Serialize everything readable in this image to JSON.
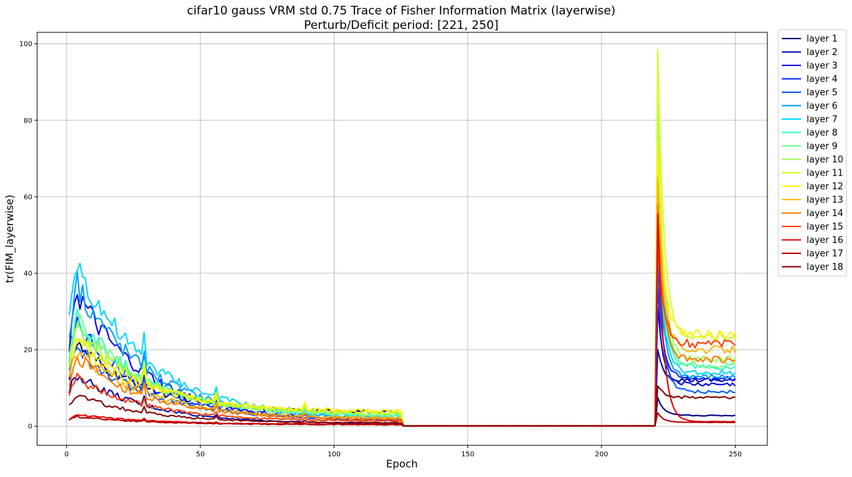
{
  "chart_data": {
    "type": "line",
    "title_line1": "cifar10 gauss VRM std 0.75 Trace of Fisher Information Matrix (layerwise)",
    "title_line2": "Perturb/Deficit period: [221, 250]",
    "xlabel": "Epoch",
    "ylabel": "tr(FIM_layerwise)",
    "xlim": [
      -11,
      262
    ],
    "ylim": [
      -5,
      103
    ],
    "x_ticks": [
      0,
      50,
      100,
      150,
      200,
      250
    ],
    "y_ticks": [
      0,
      20,
      40,
      60,
      80,
      100
    ],
    "grid": true,
    "legend_position": "outside-right-top",
    "series": [
      {
        "name": "layer 1",
        "color": "#00007f",
        "peak_early": 21,
        "plateau": 3.5,
        "spike": 7.5,
        "final": 2.8
      },
      {
        "name": "layer 2",
        "color": "#0000b2",
        "peak_early": 13.5,
        "plateau": 0.6,
        "spike": 20,
        "final": 12
      },
      {
        "name": "layer 3",
        "color": "#0000e5",
        "peak_early": 34.5,
        "plateau": 1.2,
        "spike": 31,
        "final": 11
      },
      {
        "name": "layer 4",
        "color": "#0024ff",
        "peak_early": 26,
        "plateau": 1.4,
        "spike": 36,
        "final": 12.5
      },
      {
        "name": "layer 5",
        "color": "#0060ff",
        "peak_early": 21,
        "plateau": 1.6,
        "spike": 42,
        "final": 9
      },
      {
        "name": "layer 6",
        "color": "#009cff",
        "peak_early": 37.5,
        "plateau": 1.8,
        "spike": 49,
        "final": 13
      },
      {
        "name": "layer 7",
        "color": "#00d8ff",
        "peak_early": 42.5,
        "plateau": 2.2,
        "spike": 56,
        "final": 14
      },
      {
        "name": "layer 8",
        "color": "#33ffc3",
        "peak_early": 29,
        "plateau": 2.4,
        "spike": 63,
        "final": 15.5
      },
      {
        "name": "layer 9",
        "color": "#69ff8d",
        "peak_early": 27.5,
        "plateau": 2.6,
        "spike": 71,
        "final": 16
      },
      {
        "name": "layer 10",
        "color": "#9fff56",
        "peak_early": 26,
        "plateau": 2.9,
        "spike": 85,
        "final": 17.5
      },
      {
        "name": "layer 11",
        "color": "#d5ff20",
        "peak_early": 24.5,
        "plateau": 3.3,
        "spike": 98.5,
        "final": 23.5
      },
      {
        "name": "layer 12",
        "color": "#fff000",
        "peak_early": 22,
        "plateau": 3.8,
        "spike": 74,
        "final": 24
      },
      {
        "name": "layer 13",
        "color": "#ffb500",
        "peak_early": 20,
        "plateau": 2.0,
        "spike": 65,
        "final": 20
      },
      {
        "name": "layer 14",
        "color": "#ff7a00",
        "peak_early": 18,
        "plateau": 1.7,
        "spike": 58,
        "final": 17.5
      },
      {
        "name": "layer 15",
        "color": "#ff3f00",
        "peak_early": 12.5,
        "plateau": 1.3,
        "spike": 47,
        "final": 21.5
      },
      {
        "name": "layer 16",
        "color": "#e50300",
        "peak_early": 3.0,
        "plateau": 0.5,
        "spike": 55.5,
        "final": 1.2
      },
      {
        "name": "layer 17",
        "color": "#b20000",
        "peak_early": 2.5,
        "plateau": 0.4,
        "spike": 3.5,
        "final": 1.0
      },
      {
        "name": "layer 18",
        "color": "#7f0000",
        "peak_early": 8,
        "plateau": 0.8,
        "spike": 10.5,
        "final": 7.5
      }
    ]
  }
}
